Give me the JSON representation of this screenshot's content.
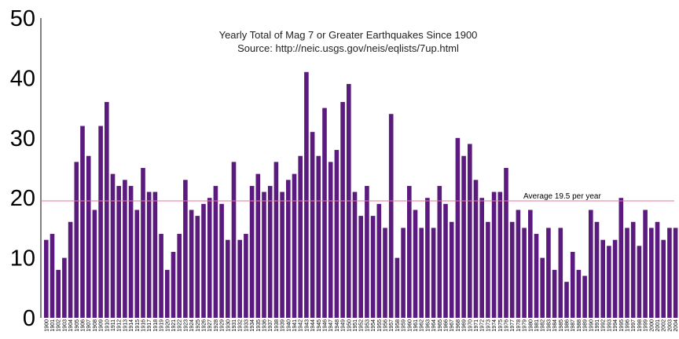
{
  "chart_data": {
    "type": "bar",
    "title": "Yearly Total of Mag 7 or Greater Earthquakes Since 1900",
    "subtitle": "Source: http://neic.usgs.gov/neis/eqlists/7up.html",
    "xlabel": "",
    "ylabel": "",
    "ylim": [
      0,
      50
    ],
    "yticks": [
      0,
      10,
      20,
      30,
      40,
      50
    ],
    "grid": false,
    "bar_color": "#5b1a7e",
    "categories": [
      "1900",
      "1901",
      "1902",
      "1903",
      "1904",
      "1905",
      "1906",
      "1907",
      "1908",
      "1909",
      "1910",
      "1911",
      "1912",
      "1913",
      "1914",
      "1915",
      "1916",
      "1917",
      "1918",
      "1919",
      "1920",
      "1921",
      "1922",
      "1923",
      "1924",
      "1925",
      "1926",
      "1927",
      "1928",
      "1929",
      "1930",
      "1931",
      "1932",
      "1933",
      "1934",
      "1935",
      "1936",
      "1937",
      "1938",
      "1939",
      "1940",
      "1941",
      "1942",
      "1943",
      "1944",
      "1945",
      "1946",
      "1947",
      "1948",
      "1949",
      "1950",
      "1951",
      "1952",
      "1953",
      "1954",
      "1955",
      "1956",
      "1957",
      "1958",
      "1959",
      "1960",
      "1961",
      "1962",
      "1963",
      "1964",
      "1965",
      "1966",
      "1967",
      "1968",
      "1969",
      "1970",
      "1971",
      "1972",
      "1973",
      "1974",
      "1975",
      "1976",
      "1977",
      "1978",
      "1979",
      "1980",
      "1981",
      "1982",
      "1983",
      "1984",
      "1985",
      "1986",
      "1987",
      "1988",
      "1989",
      "1990",
      "1991",
      "1992",
      "1993",
      "1994",
      "1995",
      "1996",
      "1997",
      "1998",
      "1999",
      "2000",
      "2001",
      "2002",
      "2003",
      "2004"
    ],
    "values": [
      13,
      14,
      8,
      10,
      16,
      26,
      32,
      27,
      18,
      32,
      36,
      24,
      22,
      23,
      22,
      18,
      25,
      21,
      21,
      14,
      8,
      11,
      14,
      23,
      18,
      17,
      19,
      20,
      22,
      19,
      13,
      26,
      13,
      14,
      22,
      24,
      21,
      22,
      26,
      21,
      23,
      24,
      27,
      41,
      31,
      27,
      35,
      26,
      28,
      36,
      39,
      21,
      17,
      22,
      17,
      19,
      15,
      34,
      10,
      15,
      22,
      18,
      15,
      20,
      15,
      22,
      19,
      16,
      30,
      27,
      29,
      23,
      20,
      16,
      21,
      21,
      25,
      16,
      18,
      15,
      18,
      14,
      10,
      15,
      8,
      15,
      6,
      11,
      8,
      7,
      18,
      16,
      13,
      12,
      13,
      20,
      15,
      16,
      12,
      18,
      15,
      16,
      13,
      15,
      15
    ],
    "reference_line": {
      "value": 19.5,
      "label": "Average 19.5 per year",
      "color": "#e07a9a"
    }
  }
}
